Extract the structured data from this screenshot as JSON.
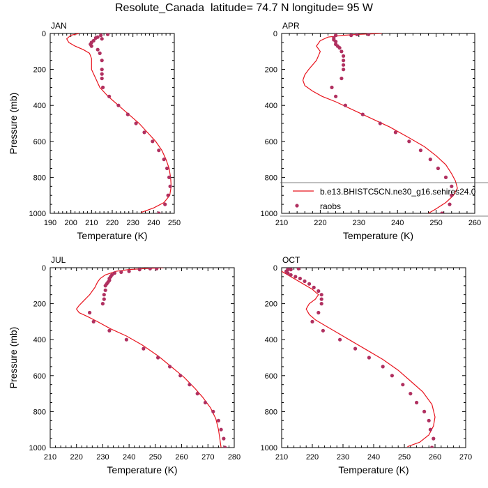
{
  "title": "Resolute_Canada  latitude= 74.7 N longitude= 95 W",
  "colors": {
    "model_line": "#e8141e",
    "raobs_marker": "#b03060",
    "axis": "#000000"
  },
  "legend_labels": {
    "model": "b.e13.BHISTC5CN.ne30_g16.sehires24.0",
    "raobs": "raobs"
  },
  "chart_data": [
    {
      "type": "line",
      "panel_label": "JAN",
      "xlabel": "Temperature (K)",
      "ylabel": "Pressure (mb)",
      "xlim": [
        190,
        250
      ],
      "ylim": [
        1000,
        0
      ],
      "y_reversed": true,
      "xticks": [
        190,
        200,
        210,
        220,
        230,
        240,
        250
      ],
      "yticks": [
        0,
        200,
        400,
        600,
        800,
        1000
      ],
      "grid": false,
      "legend": null,
      "series": [
        {
          "kind": "line",
          "points": [
            [
              204,
              0
            ],
            [
              200,
              10
            ],
            [
              198,
              30
            ],
            [
              199,
              50
            ],
            [
              202,
              70
            ],
            [
              206,
              90
            ],
            [
              209,
              110
            ],
            [
              210,
              140
            ],
            [
              210,
              170
            ],
            [
              210,
              200
            ],
            [
              211,
              225
            ],
            [
              212,
              250
            ],
            [
              213,
              275
            ],
            [
              214,
              300
            ],
            [
              216,
              325
            ],
            [
              218,
              350
            ],
            [
              221,
              380
            ],
            [
              224,
              410
            ],
            [
              228,
              450
            ],
            [
              233,
              500
            ],
            [
              237,
              550
            ],
            [
              241,
              600
            ],
            [
              244,
              650
            ],
            [
              246,
              700
            ],
            [
              247.5,
              750
            ],
            [
              248.2,
              800
            ],
            [
              248.5,
              850
            ],
            [
              247.8,
              900
            ],
            [
              245,
              940
            ],
            [
              240,
              970
            ],
            [
              234,
              995
            ]
          ]
        },
        {
          "kind": "scatter",
          "points": [
            [
              217.8,
              5
            ],
            [
              214.5,
              10
            ],
            [
              213,
              20
            ],
            [
              212,
              25
            ],
            [
              215,
              30
            ],
            [
              211,
              40
            ],
            [
              210,
              50
            ],
            [
              209.5,
              60
            ],
            [
              210,
              70
            ],
            [
              213,
              90
            ],
            [
              214,
              110
            ],
            [
              215,
              150
            ],
            [
              215,
              200
            ],
            [
              215,
              225
            ],
            [
              215,
              250
            ],
            [
              215.5,
              300
            ],
            [
              218.5,
              350
            ],
            [
              223,
              400
            ],
            [
              227.5,
              450
            ],
            [
              231.5,
              500
            ],
            [
              235.5,
              550
            ],
            [
              239.5,
              600
            ],
            [
              242.5,
              650
            ],
            [
              245,
              700
            ],
            [
              246.5,
              750
            ],
            [
              247.5,
              800
            ],
            [
              248,
              850
            ],
            [
              247,
              900
            ],
            [
              245.5,
              950
            ],
            [
              242.5,
              1000
            ]
          ]
        }
      ]
    },
    {
      "type": "line",
      "panel_label": "APR",
      "xlabel": "Temperature (K)",
      "ylabel": "",
      "xlim": [
        210,
        260
      ],
      "ylim": [
        1000,
        0
      ],
      "y_reversed": true,
      "xticks": [
        210,
        220,
        230,
        240,
        250,
        260
      ],
      "yticks": [
        0,
        200,
        400,
        600,
        800,
        1000
      ],
      "grid": false,
      "legend": "lower-right",
      "series": [
        {
          "kind": "line",
          "points": [
            [
              236,
              0
            ],
            [
              230,
              5
            ],
            [
              226,
              10
            ],
            [
              222,
              20
            ],
            [
              220,
              40
            ],
            [
              219,
              70
            ],
            [
              220,
              100
            ],
            [
              219,
              150
            ],
            [
              217,
              200
            ],
            [
              216,
              230
            ],
            [
              215.5,
              260
            ],
            [
              216,
              290
            ],
            [
              218,
              320
            ],
            [
              220.5,
              350
            ],
            [
              224,
              380
            ],
            [
              228,
              420
            ],
            [
              233,
              470
            ],
            [
              238,
              520
            ],
            [
              243,
              580
            ],
            [
              247,
              630
            ],
            [
              250,
              680
            ],
            [
              252.5,
              730
            ],
            [
              254,
              780
            ],
            [
              255,
              820
            ],
            [
              255.5,
              860
            ],
            [
              254.5,
              900
            ],
            [
              252.5,
              940
            ],
            [
              250,
              975
            ],
            [
              248,
              1000
            ]
          ]
        },
        {
          "kind": "scatter",
          "points": [
            [
              232.5,
              5
            ],
            [
              229.5,
              5
            ],
            [
              228,
              10
            ],
            [
              224,
              10
            ],
            [
              223.5,
              25
            ],
            [
              223.5,
              35
            ],
            [
              224,
              45
            ],
            [
              224,
              60
            ],
            [
              224.5,
              70
            ],
            [
              225,
              80
            ],
            [
              225.5,
              100
            ],
            [
              226,
              125
            ],
            [
              226,
              150
            ],
            [
              226,
              175
            ],
            [
              226,
              200
            ],
            [
              225.5,
              250
            ],
            [
              223,
              300
            ],
            [
              224,
              350
            ],
            [
              226.5,
              400
            ],
            [
              231,
              450
            ],
            [
              235.5,
              500
            ],
            [
              239.5,
              550
            ],
            [
              243,
              600
            ],
            [
              246,
              650
            ],
            [
              248.5,
              700
            ],
            [
              250.5,
              750
            ],
            [
              252.5,
              800
            ],
            [
              254,
              850
            ],
            [
              254,
              900
            ],
            [
              253.5,
              950
            ],
            [
              251.5,
              1000
            ]
          ]
        }
      ]
    },
    {
      "type": "line",
      "panel_label": "JUL",
      "xlabel": "Temperature (K)",
      "ylabel": "Pressure (mb)",
      "xlim": [
        210,
        280
      ],
      "ylim": [
        1000,
        0
      ],
      "y_reversed": true,
      "xticks": [
        210,
        220,
        230,
        240,
        250,
        260,
        270,
        280
      ],
      "yticks": [
        0,
        200,
        400,
        600,
        800,
        1000
      ],
      "grid": false,
      "legend": null,
      "series": [
        {
          "kind": "line",
          "points": [
            [
              253,
              0
            ],
            [
              246,
              5
            ],
            [
              240,
              10
            ],
            [
              235,
              20
            ],
            [
              231,
              40
            ],
            [
              229,
              60
            ],
            [
              228,
              80
            ],
            [
              227,
              110
            ],
            [
              226,
              130
            ],
            [
              225,
              150
            ],
            [
              223,
              180
            ],
            [
              221,
              210
            ],
            [
              220,
              230
            ],
            [
              221,
              250
            ],
            [
              224,
              270
            ],
            [
              228,
              300
            ],
            [
              233,
              340
            ],
            [
              239,
              380
            ],
            [
              245,
              430
            ],
            [
              251,
              490
            ],
            [
              256,
              550
            ],
            [
              261,
              610
            ],
            [
              265,
              670
            ],
            [
              268,
              720
            ],
            [
              271,
              780
            ],
            [
              273,
              840
            ],
            [
              274,
              900
            ],
            [
              274.5,
              950
            ],
            [
              275,
              1000
            ]
          ]
        },
        {
          "kind": "scatter",
          "points": [
            [
              250.5,
              5
            ],
            [
              248,
              5
            ],
            [
              244,
              10
            ],
            [
              240,
              20
            ],
            [
              237,
              25
            ],
            [
              234.5,
              30
            ],
            [
              233.5,
              40
            ],
            [
              233,
              50
            ],
            [
              232.5,
              60
            ],
            [
              232.5,
              70
            ],
            [
              232,
              80
            ],
            [
              231.5,
              90
            ],
            [
              231,
              100
            ],
            [
              231,
              125
            ],
            [
              230.5,
              150
            ],
            [
              230.5,
              175
            ],
            [
              230,
              200
            ],
            [
              225,
              250
            ],
            [
              226.5,
              300
            ],
            [
              232.5,
              350
            ],
            [
              239,
              400
            ],
            [
              245.5,
              450
            ],
            [
              251,
              500
            ],
            [
              255.5,
              550
            ],
            [
              259.5,
              600
            ],
            [
              263,
              650
            ],
            [
              266,
              700
            ],
            [
              269,
              750
            ],
            [
              272,
              800
            ],
            [
              274,
              850
            ],
            [
              275,
              900
            ],
            [
              276,
              950
            ],
            [
              276.5,
              1000
            ]
          ]
        }
      ]
    },
    {
      "type": "line",
      "panel_label": "OCT",
      "xlabel": "Temperature (K)",
      "ylabel": "",
      "xlim": [
        210,
        270
      ],
      "ylim": [
        1000,
        0
      ],
      "y_reversed": true,
      "xticks": [
        210,
        220,
        230,
        240,
        250,
        260,
        270
      ],
      "yticks": [
        0,
        200,
        400,
        600,
        800,
        1000
      ],
      "grid": false,
      "legend": null,
      "series": [
        {
          "kind": "line",
          "points": [
            [
              210,
              20
            ],
            [
              212,
              40
            ],
            [
              214,
              60
            ],
            [
              217,
              90
            ],
            [
              220,
              120
            ],
            [
              222,
              150
            ],
            [
              221,
              175
            ],
            [
              219,
              200
            ],
            [
              218,
              230
            ],
            [
              219,
              260
            ],
            [
              221,
              290
            ],
            [
              224,
              320
            ],
            [
              228,
              360
            ],
            [
              233,
              410
            ],
            [
              238,
              460
            ],
            [
              243,
              510
            ],
            [
              248,
              570
            ],
            [
              252,
              630
            ],
            [
              256,
              690
            ],
            [
              259,
              760
            ],
            [
              260,
              830
            ],
            [
              259.5,
              880
            ],
            [
              258,
              930
            ],
            [
              255,
              970
            ],
            [
              251,
              995
            ]
          ]
        },
        {
          "kind": "scatter",
          "points": [
            [
              215.5,
              5
            ],
            [
              213,
              10
            ],
            [
              212,
              10
            ],
            [
              211.5,
              20
            ],
            [
              212,
              30
            ],
            [
              213,
              40
            ],
            [
              214.5,
              50
            ],
            [
              216,
              60
            ],
            [
              217.5,
              75
            ],
            [
              219,
              90
            ],
            [
              220.5,
              110
            ],
            [
              222,
              130
            ],
            [
              223,
              150
            ],
            [
              223,
              175
            ],
            [
              223,
              200
            ],
            [
              222,
              250
            ],
            [
              220,
              300
            ],
            [
              223.5,
              350
            ],
            [
              229,
              400
            ],
            [
              234,
              450
            ],
            [
              238.5,
              500
            ],
            [
              243,
              550
            ],
            [
              246,
              600
            ],
            [
              249.5,
              650
            ],
            [
              252,
              700
            ],
            [
              254,
              750
            ],
            [
              256.5,
              800
            ],
            [
              258,
              850
            ],
            [
              258.5,
              900
            ],
            [
              259.5,
              950
            ],
            [
              259,
              1000
            ]
          ]
        }
      ]
    }
  ]
}
